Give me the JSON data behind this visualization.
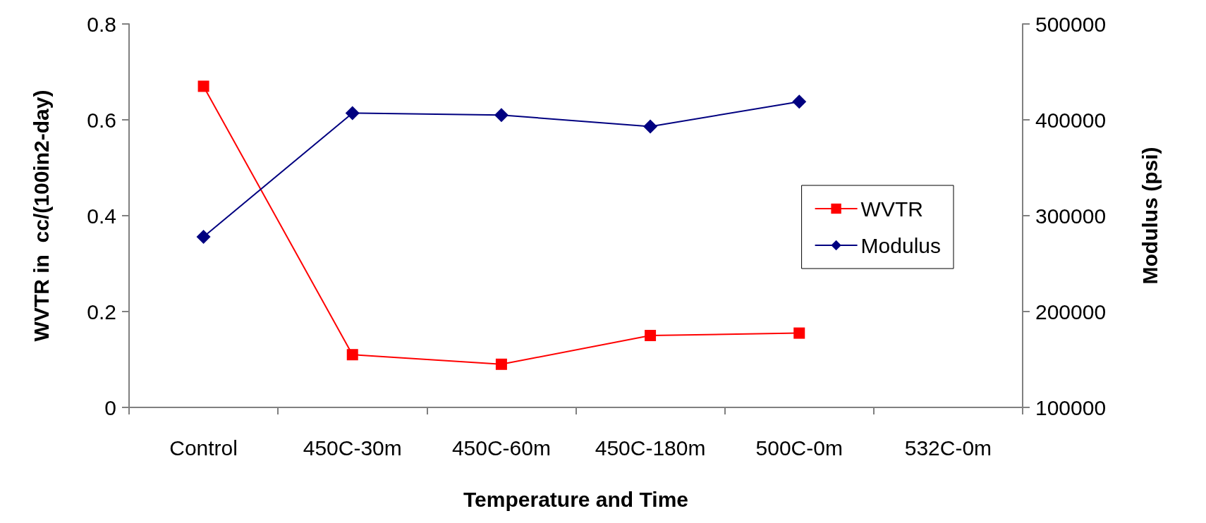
{
  "chart_data": {
    "type": "line",
    "xlabel": "Temperature and Time",
    "ylabel": "WVTR in  cc/(100in2-day)",
    "y2label": "Modulus (psi)",
    "categories": [
      "Control",
      "450C-30m",
      "450C-60m",
      "450C-180m",
      "500C-0m",
      "532C-0m"
    ],
    "series": [
      {
        "name": "WVTR",
        "color": "#ff0000",
        "marker": "square",
        "values": [
          0.67,
          0.11,
          0.09,
          0.15,
          0.155,
          null
        ]
      },
      {
        "name": "Modulus",
        "color": "#000080",
        "marker": "diamond",
        "axis": "y2",
        "values": [
          278000,
          407000,
          405000,
          393000,
          419000,
          null
        ]
      }
    ],
    "ylim": [
      0,
      0.8
    ],
    "yticks": [
      0,
      0.2,
      0.4,
      0.6,
      0.8
    ],
    "y2lim": [
      100000,
      500000
    ],
    "y2ticks": [
      100000,
      200000,
      300000,
      400000,
      500000
    ],
    "grid": false,
    "legend": "right"
  }
}
